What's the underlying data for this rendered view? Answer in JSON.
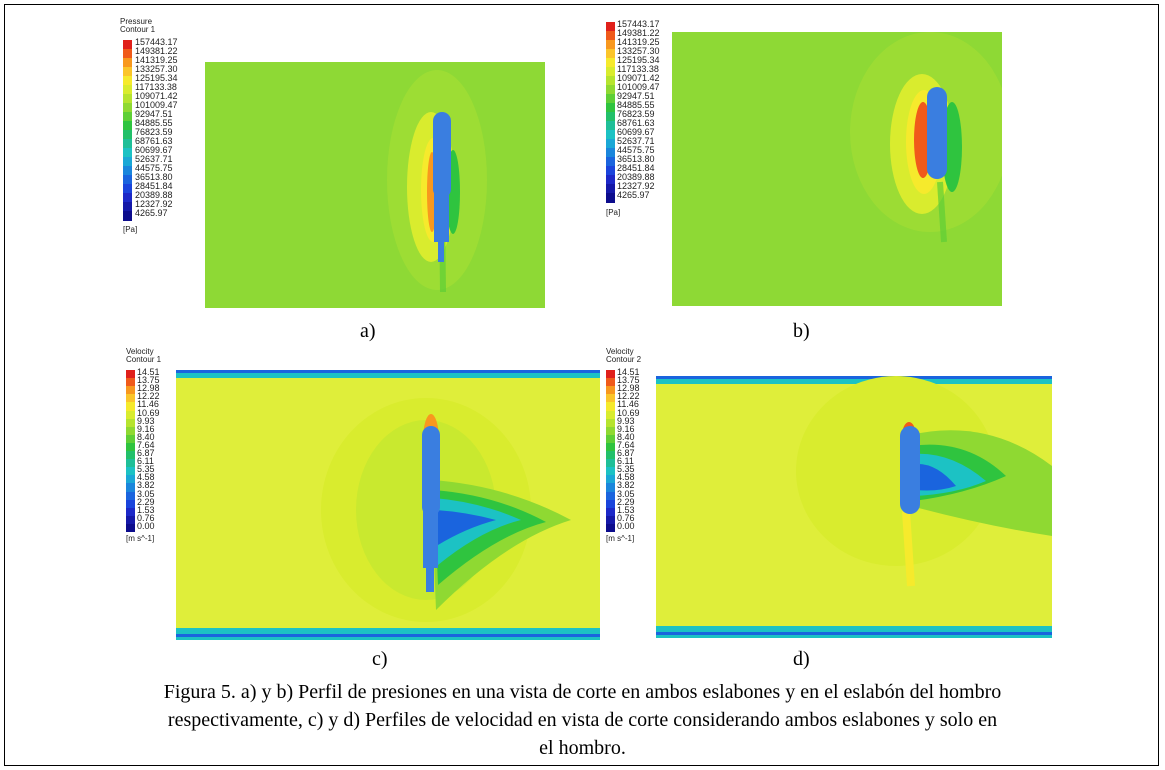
{
  "panels": [
    {
      "id": "a",
      "label": "a)",
      "legend": {
        "title": [
          "Pressure",
          "Contour 1"
        ],
        "values": [
          "157443.17",
          "149381.22",
          "141319.25",
          "133257.30",
          "125195.34",
          "117133.38",
          "109071.42",
          "101009.47",
          "92947.51",
          "84885.55",
          "76823.59",
          "68761.63",
          "60699.67",
          "52637.71",
          "44575.75",
          "36513.80",
          "28451.84",
          "20389.88",
          "12327.92",
          "4265.97"
        ],
        "unit": "[Pa]"
      }
    },
    {
      "id": "b",
      "label": "b)",
      "legend": {
        "title": [],
        "values": [
          "157443.17",
          "149381.22",
          "141319.25",
          "133257.30",
          "125195.34",
          "117133.38",
          "109071.42",
          "101009.47",
          "92947.51",
          "84885.55",
          "76823.59",
          "68761.63",
          "60699.67",
          "52637.71",
          "44575.75",
          "36513.80",
          "28451.84",
          "20389.88",
          "12327.92",
          "4265.97"
        ],
        "unit": "[Pa]"
      }
    },
    {
      "id": "c",
      "label": "c)",
      "legend": {
        "title": [
          "Velocity",
          "Contour 1"
        ],
        "values": [
          "14.51",
          "13.75",
          "12.98",
          "12.22",
          "11.46",
          "10.69",
          "9.93",
          "9.16",
          "8.40",
          "7.64",
          "6.87",
          "6.11",
          "5.35",
          "4.58",
          "3.82",
          "3.05",
          "2.29",
          "1.53",
          "0.76",
          "0.00"
        ],
        "unit": "[m s^-1]"
      }
    },
    {
      "id": "d",
      "label": "d)",
      "legend": {
        "title": [
          "Velocity",
          "Contour 2"
        ],
        "values": [
          "14.51",
          "13.75",
          "12.98",
          "12.22",
          "11.46",
          "10.69",
          "9.93",
          "9.16",
          "8.40",
          "7.64",
          "6.87",
          "6.11",
          "5.35",
          "4.58",
          "3.82",
          "3.05",
          "2.29",
          "1.53",
          "0.76",
          "0.00"
        ],
        "unit": "[m s^-1]"
      }
    }
  ],
  "colors": {
    "rainbow": [
      "#e0201a",
      "#f05a1a",
      "#f8981e",
      "#fbc52a",
      "#f6ea2c",
      "#d9ec2e",
      "#b6e42f",
      "#8fd932",
      "#5ecf36",
      "#2fc43f",
      "#22c06a",
      "#1fbf98",
      "#1cc2c4",
      "#1aa8d6",
      "#1a86dc",
      "#1a64de",
      "#1a44dc",
      "#1c28c8",
      "#1418a8",
      "#0c0c8c"
    ],
    "pressure_bg": "#8ed935",
    "velocity_bg": "#dfee3a",
    "body": "#3a7ee0"
  },
  "caption": {
    "lines": [
      "Figura 5. a) y b) Perfil de presiones en una vista de corte en ambos eslabones y en el eslabón del hombro",
      "respectivamente, c) y d) Perfiles de velocidad en vista de corte considerando ambos eslabones y solo en",
      "el hombro."
    ]
  }
}
